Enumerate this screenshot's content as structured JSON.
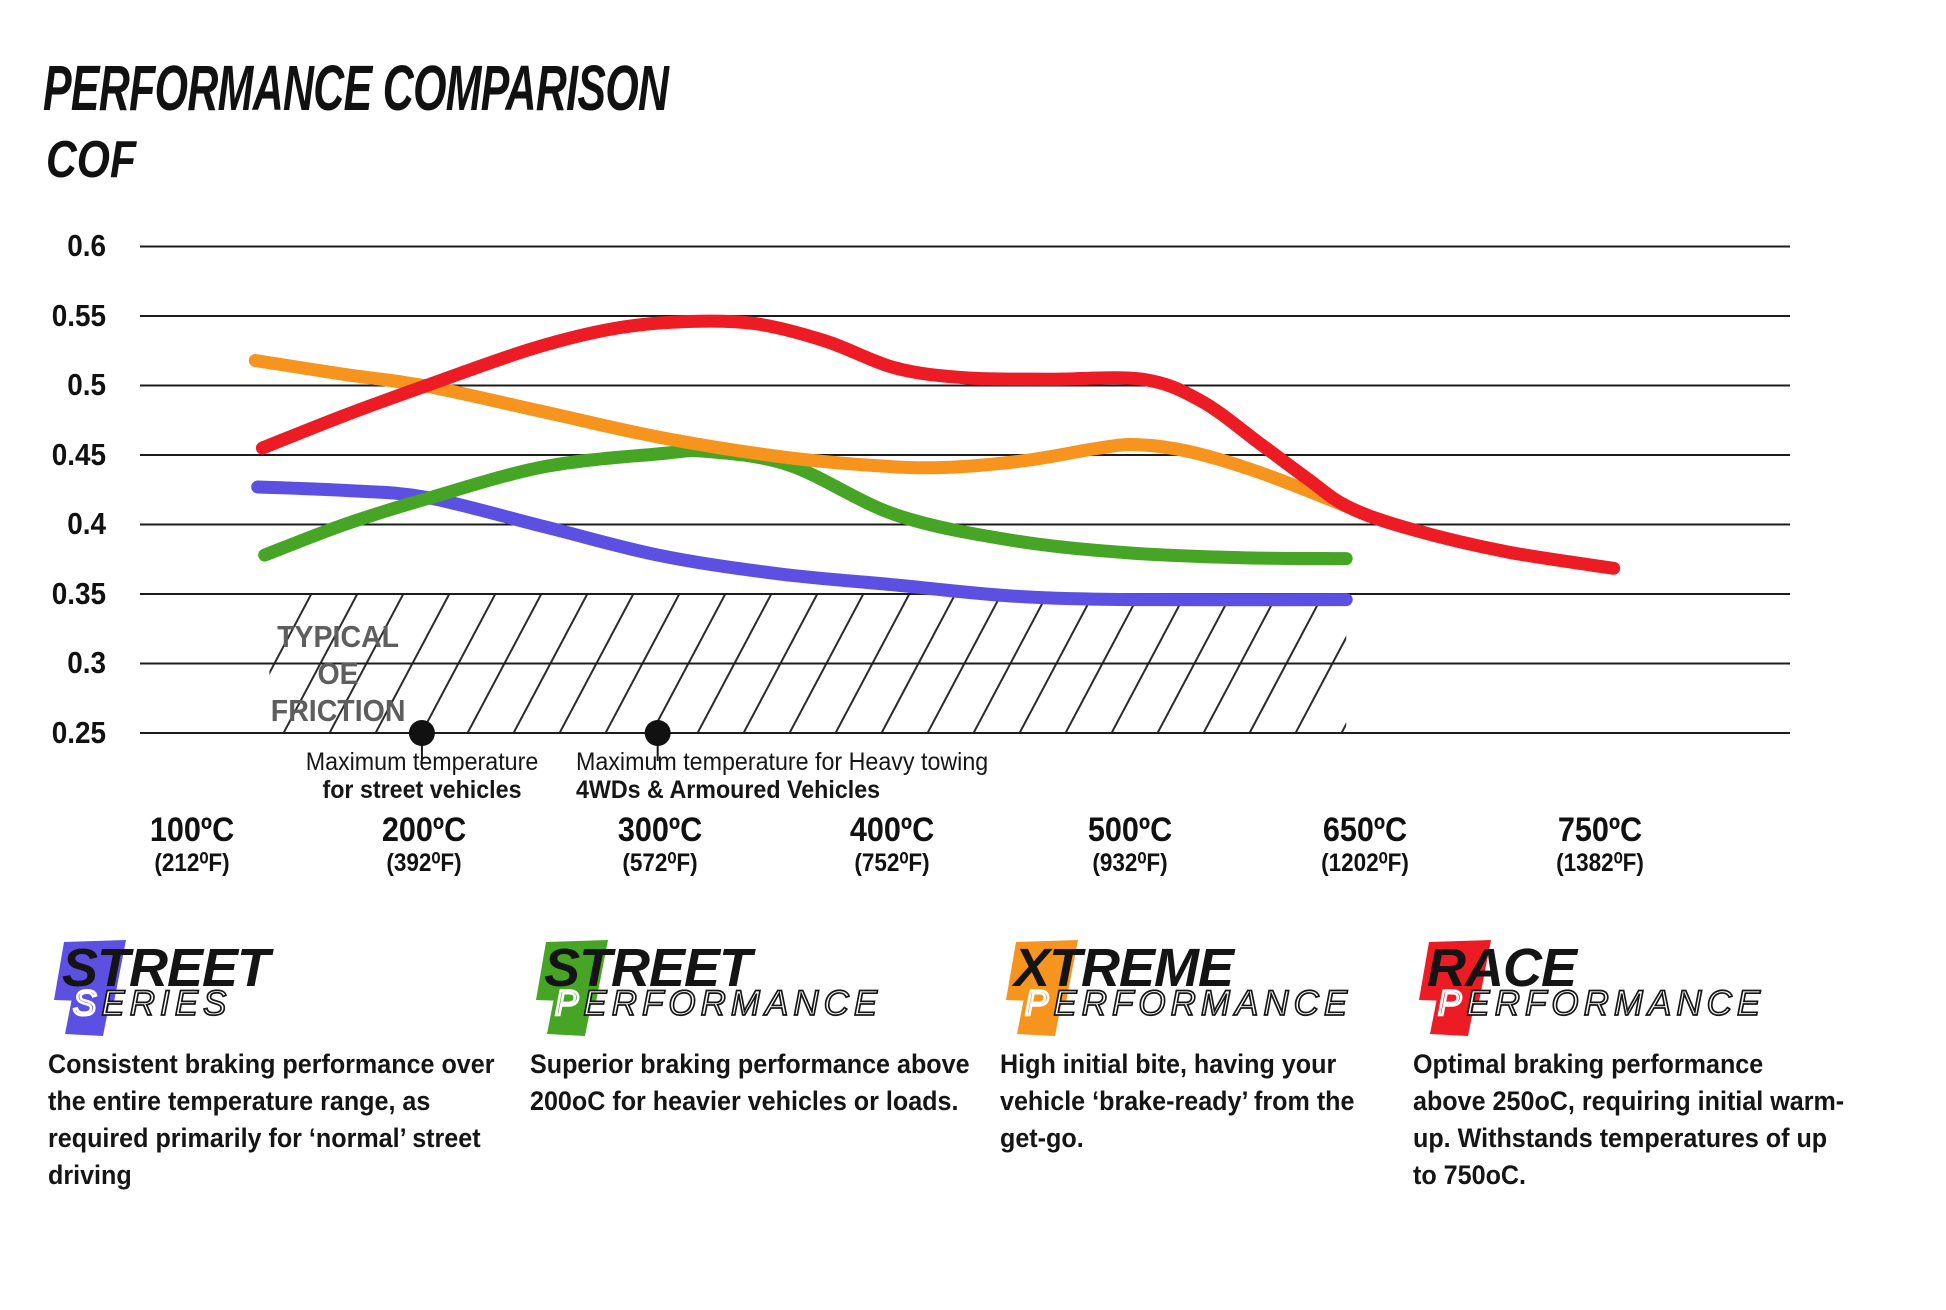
{
  "header": {
    "title": "PERFORMANCE COMPARISON"
  },
  "chart": {
    "y_axis_label": "COF",
    "y_ticks": [
      "0.6",
      "0.55",
      "0.5",
      "0.45",
      "0.4",
      "0.35",
      "0.3",
      "0.25"
    ],
    "x_ticks": [
      {
        "c": "100ºC",
        "f": "(212⁰F)"
      },
      {
        "c": "200ºC",
        "f": "(392⁰F)"
      },
      {
        "c": "300ºC",
        "f": "(572⁰F)"
      },
      {
        "c": "400ºC",
        "f": "(752⁰F)"
      },
      {
        "c": "500ºC",
        "f": "(932⁰F)"
      },
      {
        "c": "650ºC",
        "f": "(1202⁰F)"
      },
      {
        "c": "750ºC",
        "f": "(1382⁰F)"
      }
    ],
    "oe_zone_label": {
      "line1": "TYPICAL OE",
      "line2": "FRICTION"
    },
    "annotations": [
      {
        "line1": "Maximum temperature",
        "line2": "for street vehicles"
      },
      {
        "line1": "Maximum temperature for Heavy towing",
        "line2": "4WDs & Armoured Vehicles"
      }
    ]
  },
  "chart_data": {
    "type": "line",
    "title": "PERFORMANCE COMPARISON",
    "ylabel": "COF",
    "ylim": [
      0.25,
      0.6
    ],
    "grid": "horizontal",
    "legend_position": "bottom",
    "categories_celsius": [
      "100°C",
      "200°C",
      "300°C",
      "400°C",
      "500°C",
      "650°C",
      "750°C"
    ],
    "categories_fahrenheit": [
      "212°F",
      "392°F",
      "572°F",
      "752°F",
      "932°F",
      "1202°F",
      "1382°F"
    ],
    "oe_zone": {
      "label": "TYPICAL OE FRICTION",
      "cof_range": [
        0.25,
        0.35
      ],
      "u_range": [
        0.33,
        4.92
      ]
    },
    "markers": [
      {
        "u": 0.98,
        "cof": 0.25,
        "label": "Maximum temperature for street vehicles"
      },
      {
        "u": 1.985,
        "cof": 0.25,
        "label": "Maximum temperature for Heavy towing 4WDs & Armoured Vehicles"
      }
    ],
    "series": [
      {
        "name": "Street Series",
        "color": "#5B50E1",
        "values_at_ticks": [
          0.43,
          0.42,
          0.38,
          0.36,
          0.345,
          0.345,
          null
        ],
        "render_points": [
          [
            0.28,
            0.427
          ],
          [
            0.65,
            0.4245
          ],
          [
            1.0,
            0.4195
          ],
          [
            1.5,
            0.3985
          ],
          [
            2.0,
            0.3775
          ],
          [
            2.5,
            0.3645
          ],
          [
            3.0,
            0.3565
          ],
          [
            3.5,
            0.3485
          ],
          [
            4.0,
            0.346
          ],
          [
            4.92,
            0.346
          ]
        ]
      },
      {
        "name": "Street Performance",
        "color": "#47A525",
        "values_at_ticks": [
          0.38,
          0.42,
          0.45,
          0.405,
          0.38,
          0.375,
          null
        ],
        "render_points": [
          [
            0.31,
            0.378
          ],
          [
            0.65,
            0.4
          ],
          [
            1.0,
            0.4185
          ],
          [
            1.5,
            0.4415
          ],
          [
            2.0,
            0.451
          ],
          [
            2.2,
            0.4525
          ],
          [
            2.55,
            0.4425
          ],
          [
            3.0,
            0.407
          ],
          [
            3.5,
            0.3885
          ],
          [
            4.0,
            0.3795
          ],
          [
            4.5,
            0.376
          ],
          [
            4.92,
            0.3755
          ]
        ]
      },
      {
        "name": "Xtreme Performance",
        "color": "#F7941E",
        "values_at_ticks": [
          0.52,
          0.5,
          0.46,
          0.44,
          0.455,
          0.41,
          null
        ],
        "render_points": [
          [
            0.27,
            0.518
          ],
          [
            0.65,
            0.508
          ],
          [
            1.0,
            0.4995
          ],
          [
            1.5,
            0.481
          ],
          [
            2.0,
            0.4625
          ],
          [
            2.5,
            0.449
          ],
          [
            2.9,
            0.4425
          ],
          [
            3.2,
            0.441
          ],
          [
            3.55,
            0.446
          ],
          [
            3.85,
            0.4545
          ],
          [
            4.02,
            0.4575
          ],
          [
            4.25,
            0.4525
          ],
          [
            4.55,
            0.4375
          ],
          [
            4.93,
            0.4125
          ]
        ]
      },
      {
        "name": "Race Performance",
        "color": "#EC1B24",
        "values_at_ticks": [
          0.455,
          0.5,
          0.545,
          0.51,
          0.505,
          0.41,
          0.37
        ],
        "render_points": [
          [
            0.3,
            0.455
          ],
          [
            0.65,
            0.4785
          ],
          [
            1.0,
            0.5
          ],
          [
            1.45,
            0.5265
          ],
          [
            1.8,
            0.541
          ],
          [
            2.1,
            0.546
          ],
          [
            2.4,
            0.5445
          ],
          [
            2.7,
            0.532
          ],
          [
            3.0,
            0.5125
          ],
          [
            3.3,
            0.5055
          ],
          [
            3.65,
            0.5045
          ],
          [
            4.05,
            0.5045
          ],
          [
            4.3,
            0.489
          ],
          [
            4.55,
            0.4585
          ],
          [
            4.75,
            0.4335
          ],
          [
            4.93,
            0.4125
          ],
          [
            5.2,
            0.3965
          ],
          [
            5.6,
            0.3805
          ],
          [
            6.06,
            0.3685
          ]
        ]
      }
    ]
  },
  "legend": [
    {
      "name": "Street Series",
      "color": "#5B50E1",
      "word1": "STREET",
      "word2_initial": "S",
      "word2_rest": "ERIES",
      "desc_lines": [
        "Consistent braking performance over",
        "the entire temperature range, as",
        "required primarily for ‘normal’ street",
        "driving"
      ]
    },
    {
      "name": "Street Performance",
      "color": "#47A525",
      "word1": "STREET",
      "word2_initial": "P",
      "word2_rest": "ERFORMANCE",
      "desc_lines": [
        "Superior braking performance above",
        "200oC for heavier vehicles or loads."
      ]
    },
    {
      "name": "Xtreme Performance",
      "color": "#F7941E",
      "word1": "XTREME",
      "word2_initial": "P",
      "word2_rest": "ERFORMANCE",
      "desc_lines": [
        "High initial bite, having your",
        "vehicle ‘brake-ready’ from the",
        "get-go."
      ]
    },
    {
      "name": "Race Performance",
      "color": "#EC1B24",
      "word1": "RACE",
      "word2_initial": "P",
      "word2_rest": "ERFORMANCE",
      "desc_lines": [
        "Optimal braking performance",
        "above 250oC, requiring initial warm-",
        "up. Withstands temperatures of up",
        "to 750oC."
      ]
    }
  ]
}
